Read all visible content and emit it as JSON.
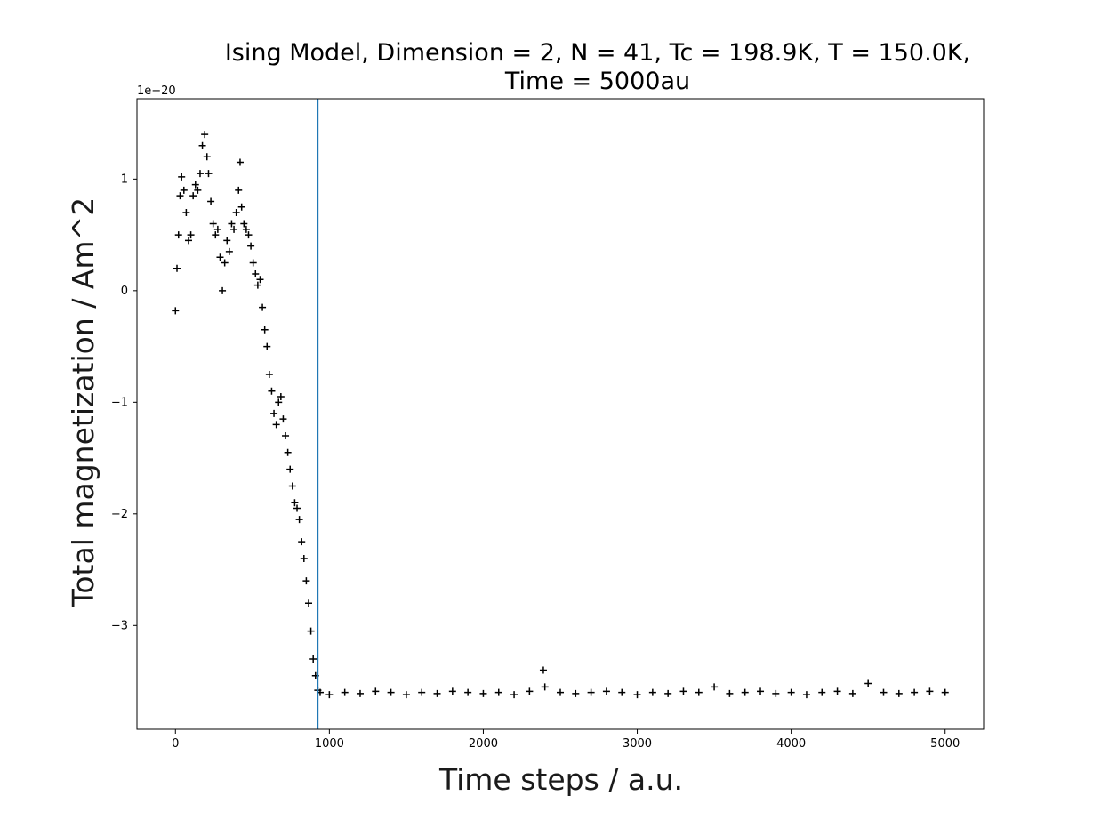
{
  "chart_data": {
    "type": "scatter",
    "title_line1": "Ising Model, Dimension = 2, N = 41, Tc = 198.9K, T = 150.0K,",
    "title_line2": "Time = 5000au",
    "xlabel": "Time steps / a.u.",
    "ylabel": "Total magnetization / Am^2",
    "y_offset_label": "1e−20",
    "xlim": [
      -250,
      5250
    ],
    "ylim": [
      -3.93,
      1.72
    ],
    "x_ticks": [
      0,
      1000,
      2000,
      3000,
      4000,
      5000
    ],
    "x_tick_labels": [
      "0",
      "1000",
      "2000",
      "3000",
      "4000",
      "5000"
    ],
    "y_ticks": [
      -3,
      -2,
      -1,
      0,
      1
    ],
    "y_tick_labels": [
      "−3",
      "−2",
      "−1",
      "0",
      "1"
    ],
    "marker": "+",
    "marker_color": "#000000",
    "vline_x": 925,
    "vline_color": "#1f77b4",
    "series": [
      {
        "values": [
          [
            0,
            -0.18
          ],
          [
            10,
            0.2
          ],
          [
            20,
            0.5
          ],
          [
            30,
            0.85
          ],
          [
            40,
            1.02
          ],
          [
            55,
            0.9
          ],
          [
            70,
            0.7
          ],
          [
            85,
            0.45
          ],
          [
            100,
            0.5
          ],
          [
            115,
            0.85
          ],
          [
            130,
            0.95
          ],
          [
            145,
            0.9
          ],
          [
            160,
            1.05
          ],
          [
            175,
            1.3
          ],
          [
            190,
            1.4
          ],
          [
            205,
            1.2
          ],
          [
            215,
            1.05
          ],
          [
            230,
            0.8
          ],
          [
            245,
            0.6
          ],
          [
            260,
            0.5
          ],
          [
            275,
            0.55
          ],
          [
            290,
            0.3
          ],
          [
            305,
            0.0
          ],
          [
            320,
            0.25
          ],
          [
            335,
            0.45
          ],
          [
            350,
            0.35
          ],
          [
            365,
            0.6
          ],
          [
            380,
            0.55
          ],
          [
            395,
            0.7
          ],
          [
            410,
            0.9
          ],
          [
            420,
            1.15
          ],
          [
            430,
            0.75
          ],
          [
            445,
            0.6
          ],
          [
            460,
            0.55
          ],
          [
            475,
            0.5
          ],
          [
            490,
            0.4
          ],
          [
            505,
            0.25
          ],
          [
            520,
            0.15
          ],
          [
            535,
            0.05
          ],
          [
            550,
            0.1
          ],
          [
            565,
            -0.15
          ],
          [
            580,
            -0.35
          ],
          [
            595,
            -0.5
          ],
          [
            610,
            -0.75
          ],
          [
            625,
            -0.9
          ],
          [
            640,
            -1.1
          ],
          [
            655,
            -1.2
          ],
          [
            670,
            -1.0
          ],
          [
            685,
            -0.95
          ],
          [
            700,
            -1.15
          ],
          [
            715,
            -1.3
          ],
          [
            730,
            -1.45
          ],
          [
            745,
            -1.6
          ],
          [
            760,
            -1.75
          ],
          [
            775,
            -1.9
          ],
          [
            790,
            -1.95
          ],
          [
            805,
            -2.05
          ],
          [
            820,
            -2.25
          ],
          [
            835,
            -2.4
          ],
          [
            850,
            -2.6
          ],
          [
            865,
            -2.8
          ],
          [
            880,
            -3.05
          ],
          [
            895,
            -3.3
          ],
          [
            910,
            -3.45
          ],
          [
            925,
            -3.58
          ],
          [
            940,
            -3.6
          ],
          [
            1000,
            -3.62
          ],
          [
            1100,
            -3.6
          ],
          [
            1200,
            -3.61
          ],
          [
            1300,
            -3.59
          ],
          [
            1400,
            -3.6
          ],
          [
            1500,
            -3.62
          ],
          [
            1600,
            -3.6
          ],
          [
            1700,
            -3.61
          ],
          [
            1800,
            -3.59
          ],
          [
            1900,
            -3.6
          ],
          [
            2000,
            -3.61
          ],
          [
            2100,
            -3.6
          ],
          [
            2200,
            -3.62
          ],
          [
            2300,
            -3.59
          ],
          [
            2390,
            -3.4
          ],
          [
            2400,
            -3.55
          ],
          [
            2500,
            -3.6
          ],
          [
            2600,
            -3.61
          ],
          [
            2700,
            -3.6
          ],
          [
            2800,
            -3.59
          ],
          [
            2900,
            -3.6
          ],
          [
            3000,
            -3.62
          ],
          [
            3100,
            -3.6
          ],
          [
            3200,
            -3.61
          ],
          [
            3300,
            -3.59
          ],
          [
            3400,
            -3.6
          ],
          [
            3500,
            -3.55
          ],
          [
            3600,
            -3.61
          ],
          [
            3700,
            -3.6
          ],
          [
            3800,
            -3.59
          ],
          [
            3900,
            -3.61
          ],
          [
            4000,
            -3.6
          ],
          [
            4100,
            -3.62
          ],
          [
            4200,
            -3.6
          ],
          [
            4300,
            -3.59
          ],
          [
            4400,
            -3.61
          ],
          [
            4500,
            -3.52
          ],
          [
            4600,
            -3.6
          ],
          [
            4700,
            -3.61
          ],
          [
            4800,
            -3.6
          ],
          [
            4900,
            -3.59
          ],
          [
            5000,
            -3.6
          ]
        ]
      }
    ]
  }
}
